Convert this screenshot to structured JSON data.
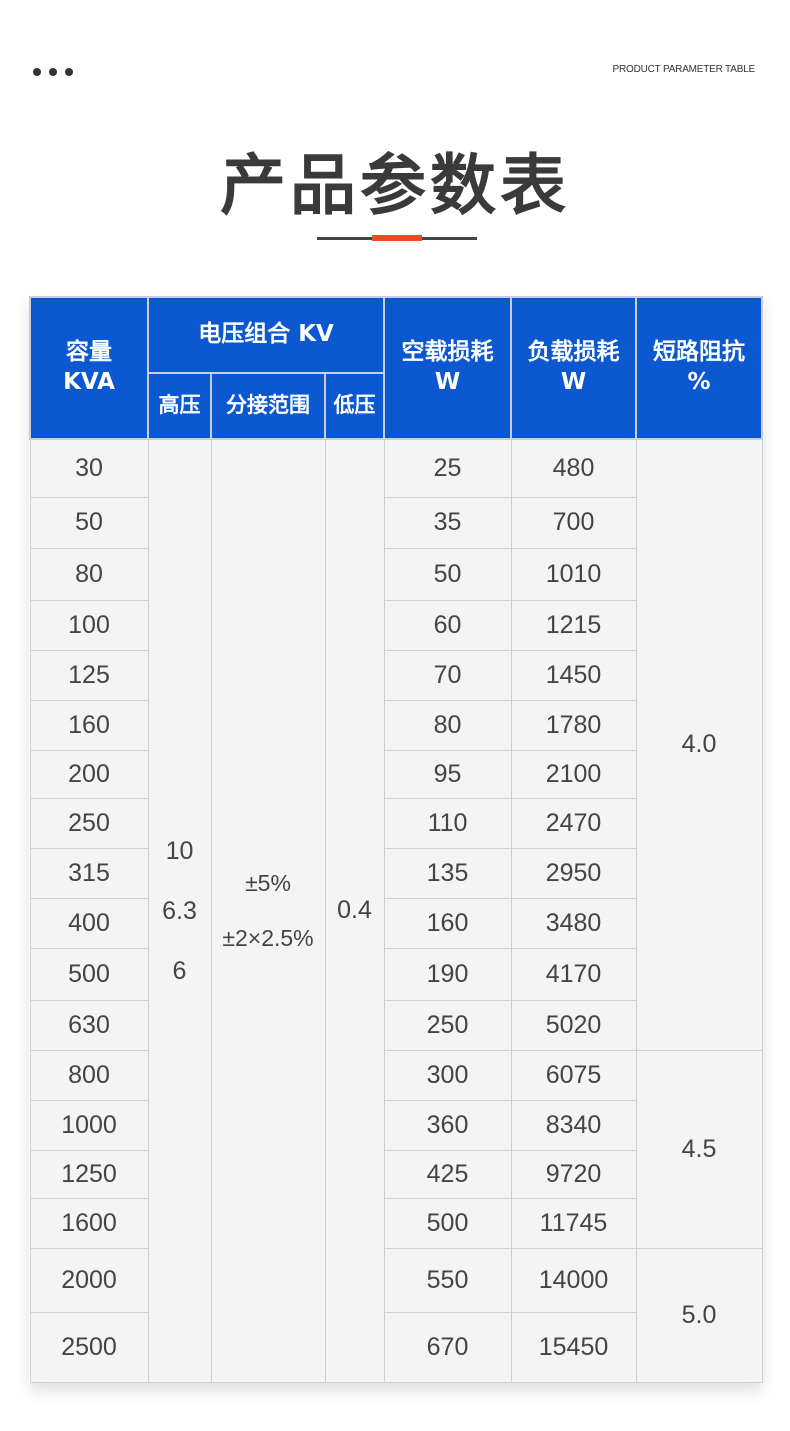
{
  "header": {
    "subtitle": "PRODUCT PARAMETER TABLE",
    "title": "产品参数表",
    "accent_color": "#f04a23"
  },
  "table": {
    "header_color": "#0b58d0",
    "columns": {
      "capacity": [
        "容量",
        "KVA"
      ],
      "voltage_group": "电压组合 KV",
      "high_voltage": "高压",
      "tap_range": "分接范围",
      "low_voltage": "低压",
      "no_load_loss": [
        "空载损耗",
        "W"
      ],
      "load_loss": [
        "负载损耗",
        "W"
      ],
      "impedance": [
        "短路阻抗",
        "%"
      ]
    },
    "high_voltage_values": [
      "10",
      "6.3",
      "6"
    ],
    "tap_range_values": [
      "±5%",
      "±2×2.5%"
    ],
    "low_voltage_value": "0.4",
    "rows": [
      {
        "capacity": "30",
        "no_load": "25",
        "load": "480"
      },
      {
        "capacity": "50",
        "no_load": "35",
        "load": "700"
      },
      {
        "capacity": "80",
        "no_load": "50",
        "load": "1010"
      },
      {
        "capacity": "100",
        "no_load": "60",
        "load": "1215"
      },
      {
        "capacity": "125",
        "no_load": "70",
        "load": "1450"
      },
      {
        "capacity": "160",
        "no_load": "80",
        "load": "1780"
      },
      {
        "capacity": "200",
        "no_load": "95",
        "load": "2100"
      },
      {
        "capacity": "250",
        "no_load": "110",
        "load": "2470"
      },
      {
        "capacity": "315",
        "no_load": "135",
        "load": "2950"
      },
      {
        "capacity": "400",
        "no_load": "160",
        "load": "3480"
      },
      {
        "capacity": "500",
        "no_load": "190",
        "load": "4170"
      },
      {
        "capacity": "630",
        "no_load": "250",
        "load": "5020"
      },
      {
        "capacity": "800",
        "no_load": "300",
        "load": "6075"
      },
      {
        "capacity": "1000",
        "no_load": "360",
        "load": "8340"
      },
      {
        "capacity": "1250",
        "no_load": "425",
        "load": "9720"
      },
      {
        "capacity": "1600",
        "no_load": "500",
        "load": "11745"
      },
      {
        "capacity": "2000",
        "no_load": "550",
        "load": "14000"
      },
      {
        "capacity": "2500",
        "no_load": "670",
        "load": "15450"
      }
    ],
    "impedance_groups": [
      {
        "value": "4.0",
        "rows": 12
      },
      {
        "value": "4.5",
        "rows": 4
      },
      {
        "value": "5.0",
        "rows": 2
      }
    ]
  }
}
